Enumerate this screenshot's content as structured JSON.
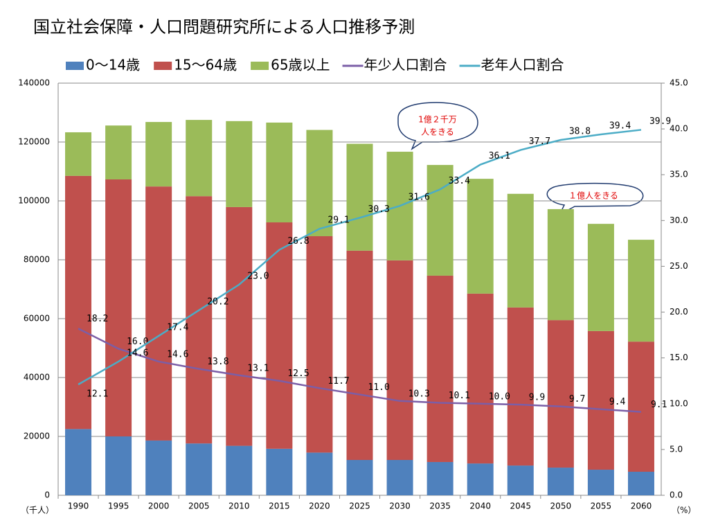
{
  "chart_data": {
    "type": "bar",
    "stacked": true,
    "title": "国立社会保障・人口問題研究所による人口推移予測",
    "categories": [
      "1990",
      "1995",
      "2000",
      "2005",
      "2010",
      "2015",
      "2020",
      "2025",
      "2030",
      "2035",
      "2040",
      "2045",
      "2050",
      "2055",
      "2060"
    ],
    "series": [
      {
        "name": "0～14歳",
        "type": "bar",
        "color": "#4f81bd",
        "values": [
          22500,
          20000,
          18600,
          17600,
          16800,
          15800,
          14500,
          12000,
          12000,
          11300,
          10800,
          10100,
          9400,
          8700,
          8000
        ]
      },
      {
        "name": "15～64歳",
        "type": "bar",
        "color": "#c0504d",
        "values": [
          86000,
          87300,
          86300,
          84000,
          81100,
          76900,
          73500,
          71100,
          67800,
          63300,
          57700,
          53700,
          50100,
          47100,
          44200
        ]
      },
      {
        "name": "65歳以上",
        "type": "bar",
        "color": "#9bbb59",
        "values": [
          14800,
          18300,
          21900,
          25900,
          29200,
          33900,
          36100,
          36300,
          36900,
          37600,
          39000,
          38600,
          37700,
          36400,
          34600
        ]
      },
      {
        "name": "年少人口割合",
        "type": "line",
        "axis": "y2",
        "color": "#7b5ea7",
        "values": [
          18.2,
          16.0,
          14.6,
          13.8,
          13.1,
          12.5,
          11.7,
          11.0,
          10.3,
          10.1,
          10.0,
          9.9,
          9.7,
          9.4,
          9.1
        ],
        "value_labels": [
          "18.2",
          "16.0",
          "14.6",
          "13.8",
          "13.1",
          "12.5",
          "11.7",
          "11.0",
          "10.3",
          "10.1",
          "10.0",
          "9.9",
          "9.7",
          "9.4",
          "9.1"
        ]
      },
      {
        "name": "老年人口割合",
        "type": "line",
        "axis": "y2",
        "color": "#4bacc6",
        "values": [
          12.1,
          14.6,
          17.4,
          20.2,
          23.0,
          26.8,
          29.1,
          30.3,
          31.6,
          33.4,
          36.1,
          37.7,
          38.8,
          39.4,
          39.9
        ],
        "value_labels": [
          "12.1",
          "14.6",
          "17.4",
          "20.2",
          "23.0",
          "26.8",
          "29.1",
          "30.3",
          "31.6",
          "33.4",
          "36.1",
          "37.7",
          "38.8",
          "39.4",
          "39.9"
        ]
      }
    ],
    "ylim": [
      0,
      140000
    ],
    "yticks": [
      0,
      20000,
      40000,
      60000,
      80000,
      100000,
      120000,
      140000
    ],
    "y2lim": [
      0,
      45
    ],
    "y2ticks": [
      {
        "value": 0,
        "label": "0.0"
      },
      {
        "value": 5,
        "label": "5.0"
      },
      {
        "value": 10,
        "label": "10.0"
      },
      {
        "value": 15,
        "label": "15.0"
      },
      {
        "value": 20,
        "label": "20.0"
      },
      {
        "value": 25,
        "label": "25.0"
      },
      {
        "value": 30,
        "label": "30.0"
      },
      {
        "value": 35,
        "label": "35.0"
      },
      {
        "value": 40,
        "label": "40.0"
      },
      {
        "value": 45,
        "label": "45.0"
      }
    ],
    "y_unit": "（千人）",
    "y2_unit": "（%）",
    "grid": true,
    "legend": "top",
    "annotations": [
      [
        "1億２千万",
        "人をきる"
      ],
      [
        "１億人をきる"
      ]
    ]
  }
}
